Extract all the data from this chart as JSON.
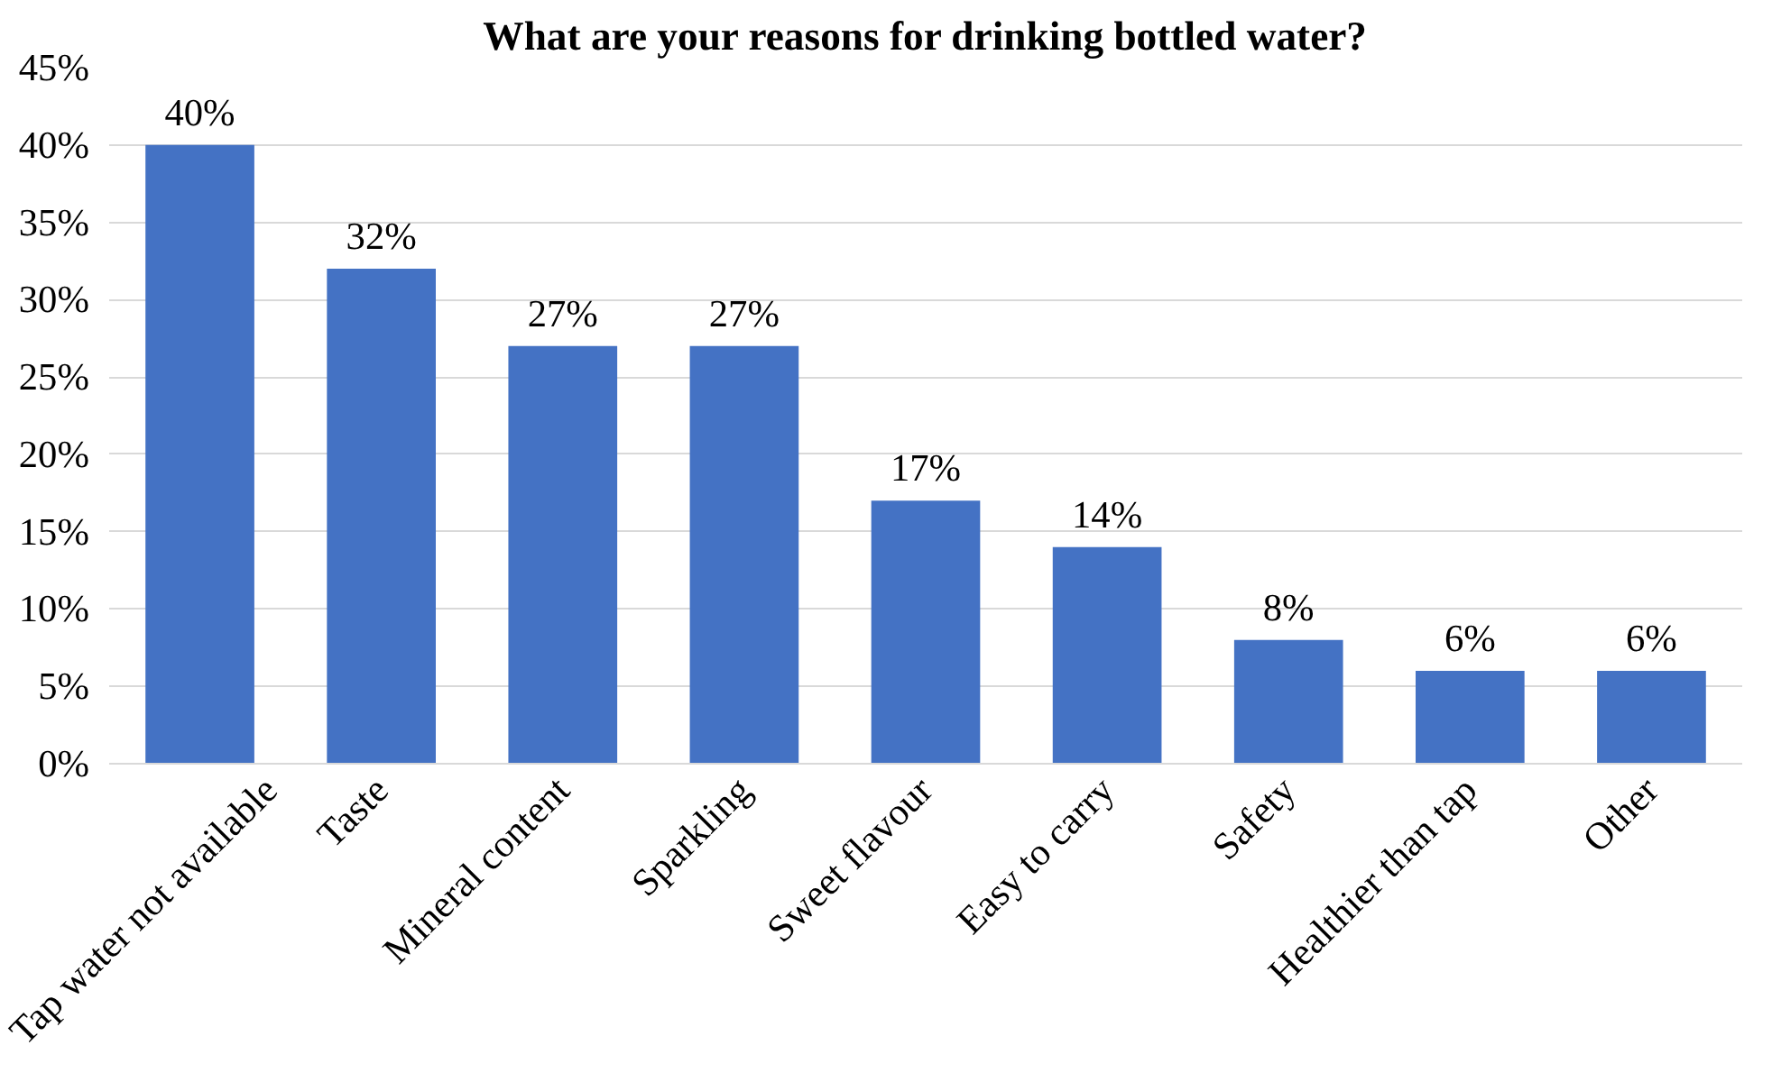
{
  "chart_data": {
    "type": "bar",
    "title": "What are your reasons for drinking bottled water?",
    "categories": [
      "Tap water not available",
      "Taste",
      "Mineral content",
      "Sparkling",
      "Sweet flavour",
      "Easy to carry",
      "Safety",
      "Healthier than tap",
      "Other"
    ],
    "values": [
      40,
      32,
      27,
      27,
      17,
      14,
      8,
      6,
      6
    ],
    "value_labels": [
      "40%",
      "32%",
      "27%",
      "27%",
      "17%",
      "14%",
      "8%",
      "6%",
      "6%"
    ],
    "color": "#4472c4",
    "ylim": [
      0,
      45
    ],
    "yticks": [
      {
        "value": 0,
        "label": "0%"
      },
      {
        "value": 5,
        "label": "5%"
      },
      {
        "value": 10,
        "label": "10%"
      },
      {
        "value": 15,
        "label": "15%"
      },
      {
        "value": 20,
        "label": "20%"
      },
      {
        "value": 25,
        "label": "25%"
      },
      {
        "value": 30,
        "label": "30%"
      },
      {
        "value": 35,
        "label": "35%"
      },
      {
        "value": 40,
        "label": "40%"
      },
      {
        "value": 45,
        "label": "45%"
      }
    ],
    "grid": "y"
  }
}
